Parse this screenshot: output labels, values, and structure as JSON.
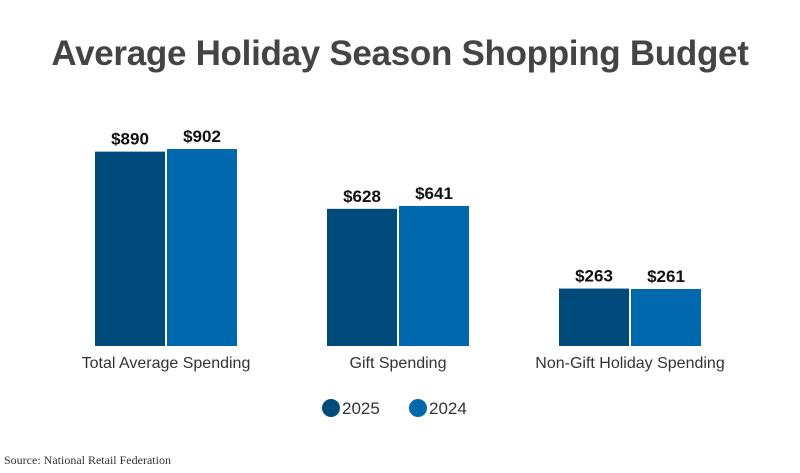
{
  "chart_data": {
    "type": "bar",
    "title": "Average Holiday Season Shopping Budget",
    "categories": [
      "Total Average Spending",
      "Gift Spending",
      "Non-Gift Holiday Spending"
    ],
    "series": [
      {
        "name": "2025",
        "values": [
          890,
          628,
          263
        ],
        "labels": [
          "$890",
          "$628",
          "$263"
        ],
        "color": "#004a7c"
      },
      {
        "name": "2024",
        "values": [
          902,
          641,
          261
        ],
        "labels": [
          "$902",
          "$641",
          "$261"
        ],
        "color": "#0068ad"
      }
    ],
    "ylim": [
      0,
      902
    ],
    "grid": false,
    "legend": "bottom-center",
    "source": "Source: National Retail Federation"
  }
}
